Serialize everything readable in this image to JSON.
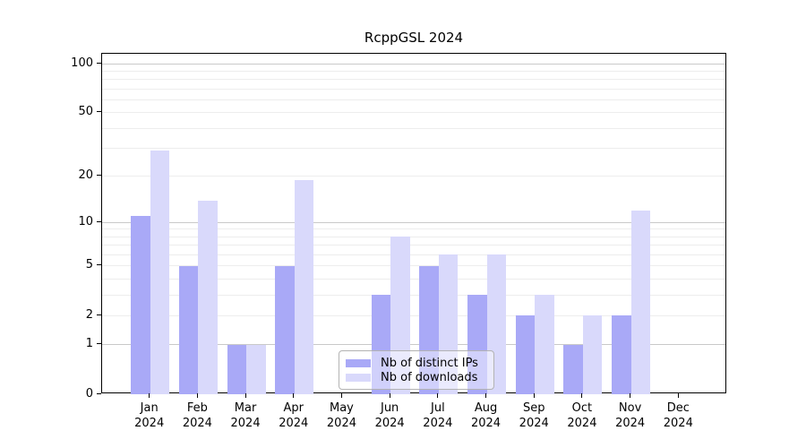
{
  "chart_data": {
    "type": "bar",
    "title": "RcppGSL 2024",
    "year_label": "2024",
    "categories": [
      "Jan",
      "Feb",
      "Mar",
      "Apr",
      "May",
      "Jun",
      "Jul",
      "Aug",
      "Sep",
      "Oct",
      "Nov",
      "Dec"
    ],
    "series": [
      {
        "name": "Nb of distinct IPs",
        "color": "#a9a9f7",
        "values": [
          11,
          5,
          1,
          5,
          0,
          3,
          5,
          3,
          2,
          1,
          2,
          0
        ]
      },
      {
        "name": "Nb of downloads",
        "color": "#d9d9fb",
        "values": [
          29,
          14,
          1,
          19,
          0,
          8,
          6,
          6,
          3,
          2,
          12,
          0
        ]
      }
    ],
    "y_scale": "log1p",
    "ylim": [
      0,
      115
    ],
    "y_ticks": [
      0,
      1,
      2,
      5,
      10,
      20,
      50,
      100
    ],
    "y_grid_major": [
      1,
      10,
      100
    ],
    "y_grid_minor": [
      2,
      3,
      4,
      5,
      6,
      7,
      8,
      9,
      20,
      30,
      40,
      50,
      60,
      70,
      80,
      90
    ],
    "xlabel": "",
    "ylabel": "",
    "grid": "horizontal",
    "legend_position": "bottom-center",
    "colors": {
      "background": "#ffffff",
      "spine": "#000000",
      "grid_major": "#c9c9c9",
      "grid_minor": "#ededed",
      "text": "#000000"
    }
  }
}
